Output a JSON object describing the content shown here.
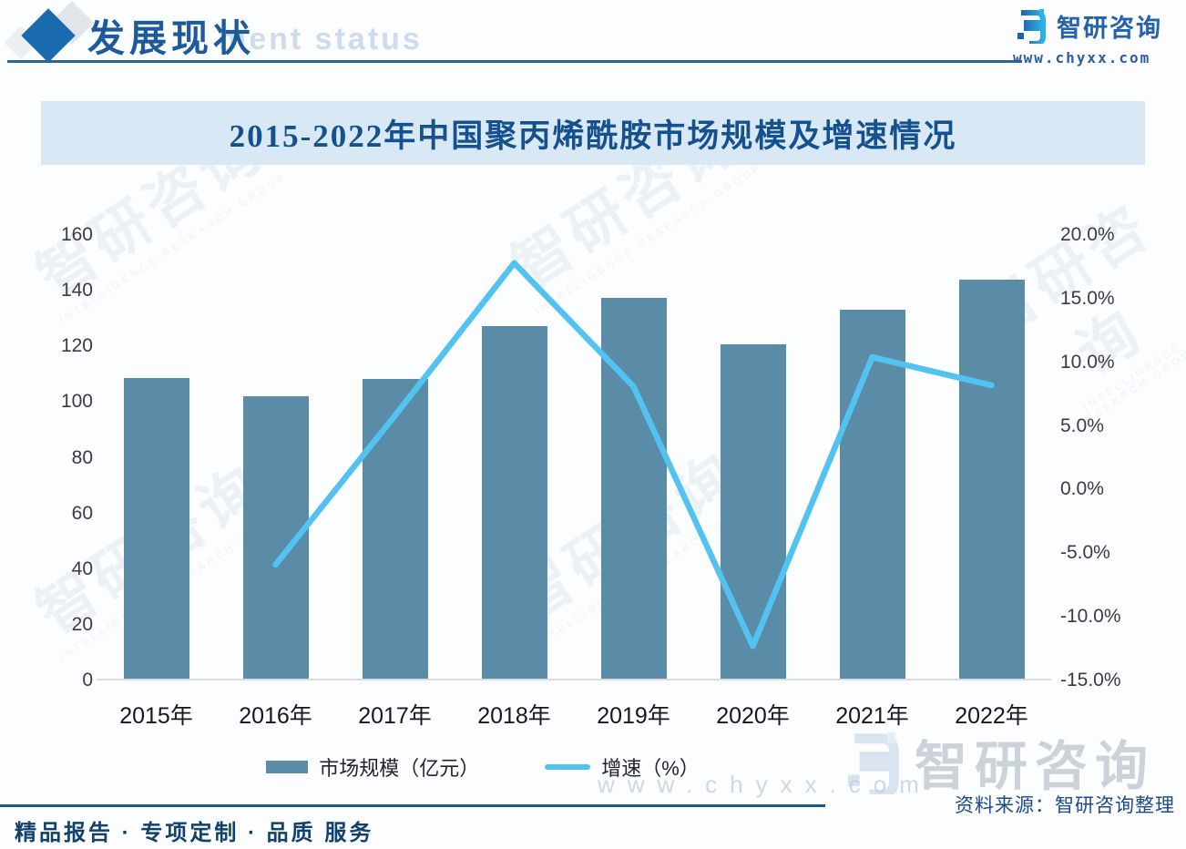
{
  "header": {
    "title": "发展现状",
    "ghost_text": "ment status",
    "brand_name": "智研咨询",
    "brand_url": "www.chyxx.com"
  },
  "chart": {
    "title": "2015-2022年中国聚丙烯酰胺市场规模及增速情况"
  },
  "chart_data": {
    "type": "bar",
    "categories": [
      "2015年",
      "2016年",
      "2017年",
      "2018年",
      "2019年",
      "2020年",
      "2021年",
      "2022年"
    ],
    "series": [
      {
        "name": "市场规模（亿元）",
        "type": "bar",
        "color": "#5b8ca7",
        "values": [
          108,
          101.6,
          107.5,
          126.6,
          136.9,
          120,
          132.5,
          143.3
        ]
      },
      {
        "name": "增速（%）",
        "type": "line",
        "color": "#52c3f1",
        "values": [
          null,
          -5.9,
          5.8,
          17.8,
          8.1,
          -12.3,
          10.4,
          8.2
        ]
      }
    ],
    "title": "2015-2022年中国聚丙烯酰胺市场规模及增速情况",
    "xlabel": "",
    "ylabel_left": "市场规模（亿元）",
    "ylabel_right": "增速（%）",
    "left_axis": {
      "min": 0,
      "max": 160,
      "ticks": [
        "160",
        "140",
        "120",
        "100",
        "80",
        "60",
        "40",
        "20",
        "0"
      ]
    },
    "right_axis": {
      "min": -15,
      "max": 20,
      "ticks": [
        "20.0%",
        "15.0%",
        "10.0%",
        "5.0%",
        "0.0%",
        "-5.0%",
        "-10.0%",
        "-15.0%"
      ]
    },
    "grid": false,
    "legend_position": "bottom"
  },
  "source": {
    "label": "资料来源：智研咨询整理"
  },
  "footer": {
    "tagline": "精品报告 · 专项定制 · 品质 服务"
  },
  "watermark": {
    "brand": "智研咨询",
    "url": "www.chyxx.com",
    "caption": "INTELLIGENCE RESEARCH GROUP"
  },
  "colors": {
    "bar": "#5b8ca7",
    "line": "#52c3f1",
    "accent": "#1c5a9b",
    "band": "#d8e8f5"
  }
}
